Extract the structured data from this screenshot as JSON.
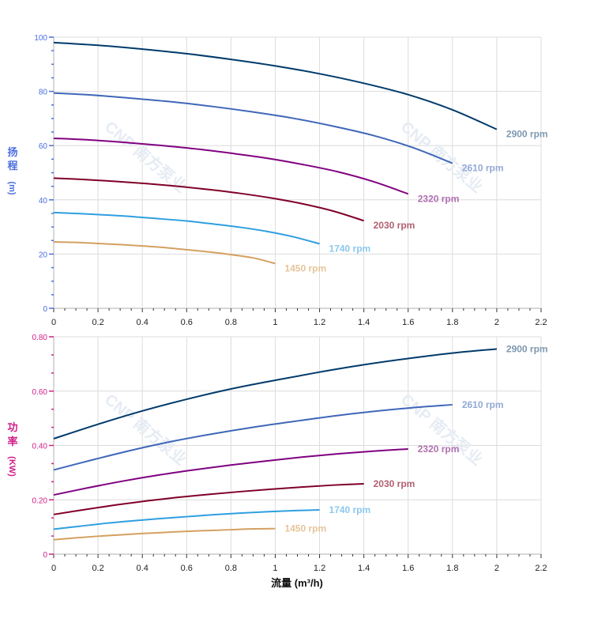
{
  "watermark": "CNP 南方泵业",
  "chart_data": [
    {
      "type": "line",
      "ylabel_chars": [
        "扬",
        "程",
        "(m)"
      ],
      "xlim": [
        0,
        2.2
      ],
      "ylim": [
        0,
        100
      ],
      "x_ticks": [
        "0",
        "0.2",
        "0.4",
        "0.6",
        "0.8",
        "1",
        "1.2",
        "1.4",
        "1.6",
        "1.8",
        "2",
        "2.2"
      ],
      "y_ticks": [
        "0",
        "20",
        "40",
        "60",
        "80",
        "100"
      ],
      "y_tick_color": "#4a6ee0",
      "grid": true,
      "series": [
        {
          "name": "2900 rpm",
          "color": "#003a6b",
          "label_color": "#7f98b0",
          "q": [
            0,
            0.2,
            0.4,
            0.6,
            0.8,
            1.0,
            1.2,
            1.4,
            1.6,
            1.8,
            2.0
          ],
          "v": [
            98.0,
            97.0,
            95.6,
            93.9,
            91.8,
            89.4,
            86.5,
            83.0,
            78.8,
            73.2,
            66.0
          ]
        },
        {
          "name": "2610 rpm",
          "color": "#3f67b8",
          "label_color": "#93a9d6",
          "q": [
            0,
            0.18,
            0.36,
            0.54,
            0.72,
            0.9,
            1.08,
            1.26,
            1.44,
            1.62,
            1.8
          ],
          "v": [
            79.4,
            78.6,
            77.4,
            76.1,
            74.4,
            72.4,
            70.1,
            67.2,
            63.8,
            59.3,
            53.5
          ]
        },
        {
          "name": "2320 rpm",
          "color": "#800080",
          "label_color": "#b070b0",
          "q": [
            0,
            0.16,
            0.32,
            0.48,
            0.64,
            0.8,
            0.96,
            1.12,
            1.28,
            1.44,
            1.6
          ],
          "v": [
            62.7,
            62.1,
            61.2,
            60.1,
            58.8,
            57.2,
            55.4,
            53.1,
            50.4,
            46.8,
            42.2
          ]
        },
        {
          "name": "2030 rpm",
          "color": "#800028",
          "label_color": "#b06070",
          "q": [
            0,
            0.14,
            0.28,
            0.42,
            0.56,
            0.7,
            0.84,
            0.98,
            1.12,
            1.26,
            1.4
          ],
          "v": [
            48.0,
            47.5,
            46.8,
            46.0,
            45.0,
            43.8,
            42.4,
            40.7,
            38.6,
            35.9,
            32.3
          ]
        },
        {
          "name": "1740 rpm",
          "color": "#2e9fe0",
          "label_color": "#8cc8ee",
          "q": [
            0,
            0.12,
            0.24,
            0.36,
            0.48,
            0.6,
            0.72,
            0.84,
            0.96,
            1.08,
            1.2
          ],
          "v": [
            35.3,
            34.9,
            34.4,
            33.8,
            33.0,
            32.2,
            31.1,
            29.9,
            28.4,
            26.4,
            23.8
          ]
        },
        {
          "name": "1450 rpm",
          "color": "#d4a060",
          "label_color": "#e6c49a",
          "q": [
            0,
            0.1,
            0.2,
            0.3,
            0.4,
            0.5,
            0.6,
            0.7,
            0.8,
            0.9,
            1.0
          ],
          "v": [
            24.5,
            24.3,
            23.9,
            23.5,
            23.0,
            22.4,
            21.6,
            20.8,
            19.8,
            18.6,
            16.5
          ]
        }
      ]
    },
    {
      "type": "line",
      "ylabel_chars": [
        "功",
        "率",
        "(KW)"
      ],
      "xlabel": "流量 (m³/h)",
      "xlim": [
        0,
        2.2
      ],
      "ylim": [
        0,
        0.8
      ],
      "x_ticks": [
        "0",
        "0.2",
        "0.4",
        "0.6",
        "0.8",
        "1",
        "1.2",
        "1.4",
        "1.6",
        "1.8",
        "2",
        "2.2"
      ],
      "y_ticks": [
        "0",
        "0.20",
        "0.40",
        "0.60",
        "0.80"
      ],
      "y_tick_color": "#d0208a",
      "grid": true,
      "series": [
        {
          "name": "2900 rpm",
          "color": "#003a6b",
          "label_color": "#7f98b0",
          "q": [
            0,
            0.2,
            0.4,
            0.6,
            0.8,
            1.0,
            1.2,
            1.4,
            1.6,
            1.8,
            2.0
          ],
          "v": [
            0.425,
            0.478,
            0.527,
            0.57,
            0.608,
            0.64,
            0.67,
            0.697,
            0.72,
            0.74,
            0.755
          ]
        },
        {
          "name": "2610 rpm",
          "color": "#3f67b8",
          "label_color": "#93a9d6",
          "q": [
            0,
            0.18,
            0.36,
            0.54,
            0.72,
            0.9,
            1.08,
            1.26,
            1.44,
            1.62,
            1.8
          ],
          "v": [
            0.31,
            0.348,
            0.384,
            0.416,
            0.443,
            0.467,
            0.488,
            0.508,
            0.525,
            0.539,
            0.55
          ]
        },
        {
          "name": "2320 rpm",
          "color": "#800080",
          "label_color": "#b070b0",
          "q": [
            0,
            0.16,
            0.32,
            0.48,
            0.64,
            0.8,
            0.96,
            1.12,
            1.28,
            1.44,
            1.6
          ],
          "v": [
            0.218,
            0.245,
            0.27,
            0.292,
            0.311,
            0.328,
            0.343,
            0.357,
            0.369,
            0.379,
            0.387
          ]
        },
        {
          "name": "2030 rpm",
          "color": "#800028",
          "label_color": "#b06070",
          "q": [
            0,
            0.14,
            0.28,
            0.42,
            0.56,
            0.7,
            0.84,
            0.98,
            1.12,
            1.26,
            1.4
          ],
          "v": [
            0.146,
            0.164,
            0.181,
            0.196,
            0.209,
            0.22,
            0.23,
            0.239,
            0.247,
            0.254,
            0.259
          ]
        },
        {
          "name": "1740 rpm",
          "color": "#2e9fe0",
          "label_color": "#8cc8ee",
          "q": [
            0,
            0.12,
            0.24,
            0.36,
            0.48,
            0.6,
            0.72,
            0.84,
            0.96,
            1.08,
            1.2
          ],
          "v": [
            0.092,
            0.103,
            0.114,
            0.123,
            0.131,
            0.138,
            0.145,
            0.151,
            0.156,
            0.16,
            0.163
          ]
        },
        {
          "name": "1450 rpm",
          "color": "#d4a060",
          "label_color": "#e6c49a",
          "q": [
            0,
            0.1,
            0.2,
            0.3,
            0.4,
            0.5,
            0.6,
            0.7,
            0.8,
            0.9,
            1.0
          ],
          "v": [
            0.053,
            0.06,
            0.066,
            0.071,
            0.076,
            0.08,
            0.084,
            0.087,
            0.09,
            0.093,
            0.094
          ]
        }
      ]
    }
  ]
}
